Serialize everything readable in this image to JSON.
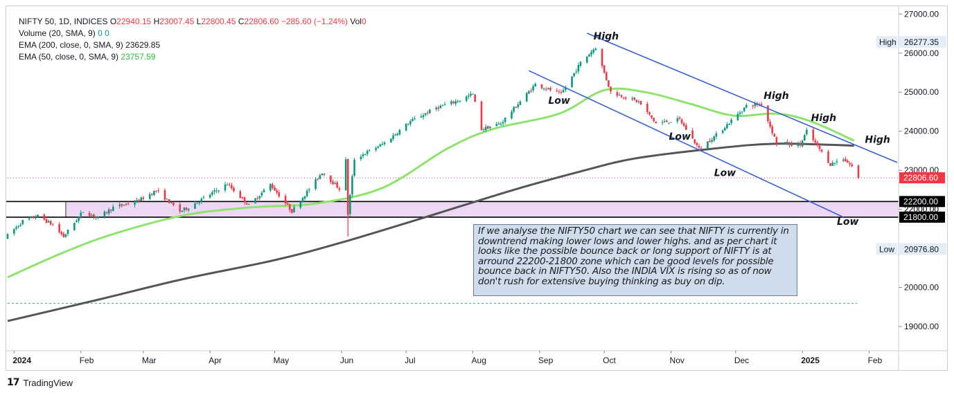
{
  "legend": {
    "symbol": "NIFTY 50, 1D, INDICES",
    "ohlc": [
      {
        "label": "O",
        "value": "22940.15"
      },
      {
        "label": "H",
        "value": "23007.45"
      },
      {
        "label": "L",
        "value": "22800.45"
      },
      {
        "label": "C",
        "value": "22806.60"
      }
    ],
    "change": "−285.60 (−1.24%)",
    "vol_label": "Vol",
    "vol_value": "0",
    "volume_study": "Volume (20, SMA, 9)",
    "volume_values": [
      "0",
      "0"
    ],
    "ema200_study": "EMA (200, close, 0, SMA, 9)",
    "ema200_value": "23629.85",
    "ema50_study": "EMA (50, close, 0, SMA, 9)",
    "ema50_value": "23757.59"
  },
  "colors": {
    "up": "#089981",
    "down": "#f23645",
    "ema50": "#8fe36c",
    "ema200": "#555555",
    "channel": "#3560d6",
    "zone": "#ecd8f3",
    "price_label": "#f23645"
  },
  "chart_data": {
    "type": "candlestick",
    "y_axis": {
      "ticks": [
        {
          "value": 27000,
          "label": "27000.00"
        },
        {
          "value": 26000,
          "label": "26000.00"
        },
        {
          "value": 25000,
          "label": "25000.00"
        },
        {
          "value": 24000,
          "label": "24000.00"
        },
        {
          "value": 23000,
          "label": "23000.00"
        },
        {
          "value": 22000,
          "label": "22000.00"
        },
        {
          "value": 20000,
          "label": "20000.00"
        },
        {
          "value": 19000,
          "label": "19000.00"
        }
      ],
      "range": [
        18380,
        27200
      ]
    },
    "x_axis": {
      "ticks": [
        {
          "label": "2024",
          "date": "2024-01-01",
          "bold": true
        },
        {
          "label": "Feb",
          "date": "2024-02-01"
        },
        {
          "label": "Mar",
          "date": "2024-03-01"
        },
        {
          "label": "Apr",
          "date": "2024-04-01"
        },
        {
          "label": "May",
          "date": "2024-05-01"
        },
        {
          "label": "Jun",
          "date": "2024-06-01"
        },
        {
          "label": "Jul",
          "date": "2024-07-01"
        },
        {
          "label": "Aug",
          "date": "2024-08-01"
        },
        {
          "label": "Sep",
          "date": "2024-09-01"
        },
        {
          "label": "Oct",
          "date": "2024-10-01"
        },
        {
          "label": "Nov",
          "date": "2024-11-01"
        },
        {
          "label": "Dec",
          "date": "2024-12-01"
        },
        {
          "label": "2025",
          "date": "2025-01-01",
          "bold": true
        },
        {
          "label": "Feb",
          "date": "2025-02-01"
        }
      ],
      "range": [
        "2023-12-29",
        "2025-02-14"
      ]
    },
    "price_path": [
      [
        "2023-12-29",
        21330
      ],
      [
        "2024-01-05",
        21700
      ],
      [
        "2024-01-12",
        21830
      ],
      [
        "2024-01-19",
        21600
      ],
      [
        "2024-01-24",
        21300
      ],
      [
        "2024-02-02",
        21950
      ],
      [
        "2024-02-09",
        21780
      ],
      [
        "2024-02-16",
        22050
      ],
      [
        "2024-02-27",
        22200
      ],
      [
        "2024-03-07",
        22480
      ],
      [
        "2024-03-18",
        21950
      ],
      [
        "2024-03-22",
        22050
      ],
      [
        "2024-04-09",
        22650
      ],
      [
        "2024-04-19",
        22100
      ],
      [
        "2024-04-29",
        22640
      ],
      [
        "2024-05-09",
        21950
      ],
      [
        "2024-05-23",
        22950
      ],
      [
        "2024-05-31",
        22530
      ],
      [
        "2024-06-03",
        23250
      ],
      [
        "2024-06-04",
        21880
      ],
      [
        "2024-06-07",
        23290
      ],
      [
        "2024-06-21",
        23700
      ],
      [
        "2024-07-03",
        24250
      ],
      [
        "2024-07-15",
        24600
      ],
      [
        "2024-07-26",
        24800
      ],
      [
        "2024-08-01",
        24950
      ],
      [
        "2024-08-05",
        24050
      ],
      [
        "2024-08-14",
        24200
      ],
      [
        "2024-08-30",
        25200
      ],
      [
        "2024-09-11",
        24950
      ],
      [
        "2024-09-20",
        25750
      ],
      [
        "2024-09-27",
        26150
      ],
      [
        "2024-10-04",
        25000
      ],
      [
        "2024-10-17",
        24750
      ],
      [
        "2024-10-25",
        24200
      ],
      [
        "2024-11-05",
        24300
      ],
      [
        "2024-11-14",
        23550
      ],
      [
        "2024-11-22",
        23900
      ],
      [
        "2024-12-06",
        24650
      ],
      [
        "2024-12-13",
        24700
      ],
      [
        "2024-12-20",
        23700
      ],
      [
        "2024-12-31",
        23650
      ],
      [
        "2025-01-03",
        24000
      ],
      [
        "2025-01-14",
        23150
      ],
      [
        "2025-01-20",
        23300
      ],
      [
        "2025-01-24",
        23100
      ],
      [
        "2025-01-27",
        22829
      ]
    ],
    "ema50_points": [
      [
        "2023-12-29",
        20260
      ],
      [
        "2024-01-22",
        20850
      ],
      [
        "2024-02-15",
        21350
      ],
      [
        "2024-03-20",
        21850
      ],
      [
        "2024-04-20",
        22050
      ],
      [
        "2024-05-20",
        22150
      ],
      [
        "2024-06-20",
        22550
      ],
      [
        "2024-07-20",
        23550
      ],
      [
        "2024-08-10",
        24050
      ],
      [
        "2024-09-10",
        24450
      ],
      [
        "2024-10-01",
        25050
      ],
      [
        "2024-10-20",
        25000
      ],
      [
        "2024-11-10",
        24700
      ],
      [
        "2024-11-30",
        24400
      ],
      [
        "2024-12-20",
        24450
      ],
      [
        "2025-01-05",
        24250
      ],
      [
        "2025-01-25",
        23757.59
      ]
    ],
    "ema200_points": [
      [
        "2023-12-29",
        19140
      ],
      [
        "2024-02-10",
        19700
      ],
      [
        "2024-03-20",
        20220
      ],
      [
        "2024-05-01",
        20700
      ],
      [
        "2024-06-01",
        21150
      ],
      [
        "2024-07-10",
        21800
      ],
      [
        "2024-08-20",
        22500
      ],
      [
        "2024-09-20",
        22970
      ],
      [
        "2024-10-15",
        23300
      ],
      [
        "2024-11-20",
        23550
      ],
      [
        "2024-12-20",
        23680
      ],
      [
        "2025-01-25",
        23629.85
      ]
    ],
    "channel_lines": [
      {
        "from": [
          "2024-08-27",
          25550
        ],
        "to": [
          "2025-01-20",
          21800
        ]
      },
      {
        "from": [
          "2024-09-23",
          26510
        ],
        "to": [
          "2025-02-14",
          23200
        ]
      }
    ],
    "support_zone": {
      "upper": 22200,
      "lower": 21800,
      "start": "2024-01-25"
    },
    "range_high": 26277.35,
    "range_low": 20976.8,
    "last_price": 22806.6,
    "price_labels": {
      "last": "22806.60",
      "upper": "22200.00",
      "lower": "21800.00",
      "high_value": "26277.35",
      "low_value": "20976.80",
      "high_tag": "High",
      "low_tag": "Low",
      "partial": "22000.00"
    },
    "annotations": [
      {
        "text": "High",
        "date": "2024-09-26",
        "price": 26350
      },
      {
        "text": "Low",
        "date": "2024-09-05",
        "price": 24700
      },
      {
        "text": "Low",
        "date": "2024-10-31",
        "price": 23780
      },
      {
        "text": "Low",
        "date": "2024-11-21",
        "price": 22850
      },
      {
        "text": "High",
        "date": "2024-12-14",
        "price": 24830
      },
      {
        "text": "High",
        "date": "2025-01-05",
        "price": 24260
      },
      {
        "text": "High",
        "date": "2025-01-30",
        "price": 23700
      },
      {
        "text": "Low",
        "date": "2025-01-17",
        "price": 21600
      }
    ]
  },
  "note": {
    "lines": [
      "If we analyse the NIFTY50 chart we can see that NIFTY is currently in",
      "downtrend making lower lows and lower highs. and as per chart it",
      "looks like the possible bounce back or long support of NIFTY is at",
      "arround 22200-21800 zone which can be good levels for possible",
      "bounce back in NIFTY50. Also the INDIA VIX is rising so as of now",
      "don't rush for  extensive buying thinking as buy on dip."
    ]
  },
  "footer": {
    "logo": "17",
    "brand": "TradingView"
  }
}
